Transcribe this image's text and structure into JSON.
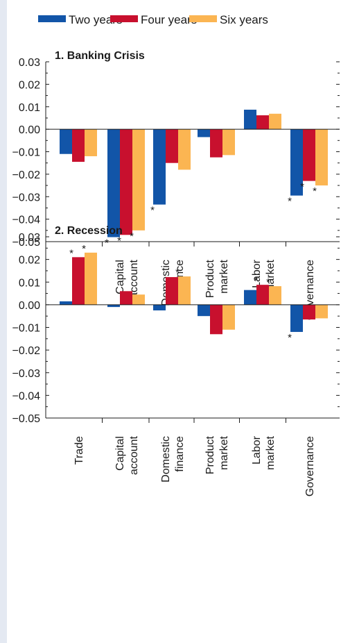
{
  "chart_data": {
    "type": "bar",
    "legend": {
      "placement": "top",
      "entries": [
        "Two years",
        "Four years",
        "Six years"
      ]
    },
    "series_colors": [
      "#1255a8",
      "#c8102e",
      "#fbb552"
    ],
    "categories": [
      [
        "Trade"
      ],
      [
        "Capital",
        "account"
      ],
      [
        "Domestic",
        "finance"
      ],
      [
        "Product",
        "market"
      ],
      [
        "Labor",
        "market"
      ],
      [
        "Governance"
      ]
    ],
    "ylim": [
      -0.05,
      0.03
    ],
    "y_ticks": [
      "0.03",
      "0.02",
      "0.01",
      "0.00",
      "−0.01",
      "−0.02",
      "−0.03",
      "−0.04",
      "−0.05"
    ],
    "panels": [
      {
        "title": "1. Banking Crisis",
        "series": [
          {
            "name": "Two years",
            "values": [
              -0.011,
              -0.048,
              -0.0335,
              -0.0035,
              0.0087,
              -0.0295
            ]
          },
          {
            "name": "Four years",
            "values": [
              -0.0145,
              -0.047,
              -0.015,
              -0.0125,
              0.0062,
              -0.023
            ]
          },
          {
            "name": "Six years",
            "values": [
              -0.012,
              -0.045,
              -0.018,
              -0.0115,
              0.0069,
              -0.025
            ]
          }
        ],
        "significant": [
          {
            "series": 0,
            "category": 1
          },
          {
            "series": 1,
            "category": 1
          },
          {
            "series": 2,
            "category": 1
          },
          {
            "series": 0,
            "category": 2
          },
          {
            "series": 0,
            "category": 5
          },
          {
            "series": 1,
            "category": 5
          },
          {
            "series": 2,
            "category": 5
          }
        ]
      },
      {
        "title": "2. Recession",
        "series": [
          {
            "name": "Two years",
            "values": [
              0.0015,
              -0.001,
              -0.0025,
              -0.005,
              0.0065,
              -0.012
            ]
          },
          {
            "name": "Four years",
            "values": [
              0.021,
              0.006,
              0.0122,
              -0.013,
              0.0088,
              -0.0065
            ]
          },
          {
            "name": "Six years",
            "values": [
              0.023,
              0.0045,
              0.0125,
              -0.011,
              0.0082,
              -0.006
            ]
          }
        ],
        "significant": [
          {
            "series": 1,
            "category": 0
          },
          {
            "series": 2,
            "category": 0
          },
          {
            "series": 2,
            "category": 2
          },
          {
            "series": 1,
            "category": 4
          },
          {
            "series": 2,
            "category": 4
          },
          {
            "series": 0,
            "category": 5
          }
        ]
      }
    ]
  },
  "marker_symbol": "*"
}
